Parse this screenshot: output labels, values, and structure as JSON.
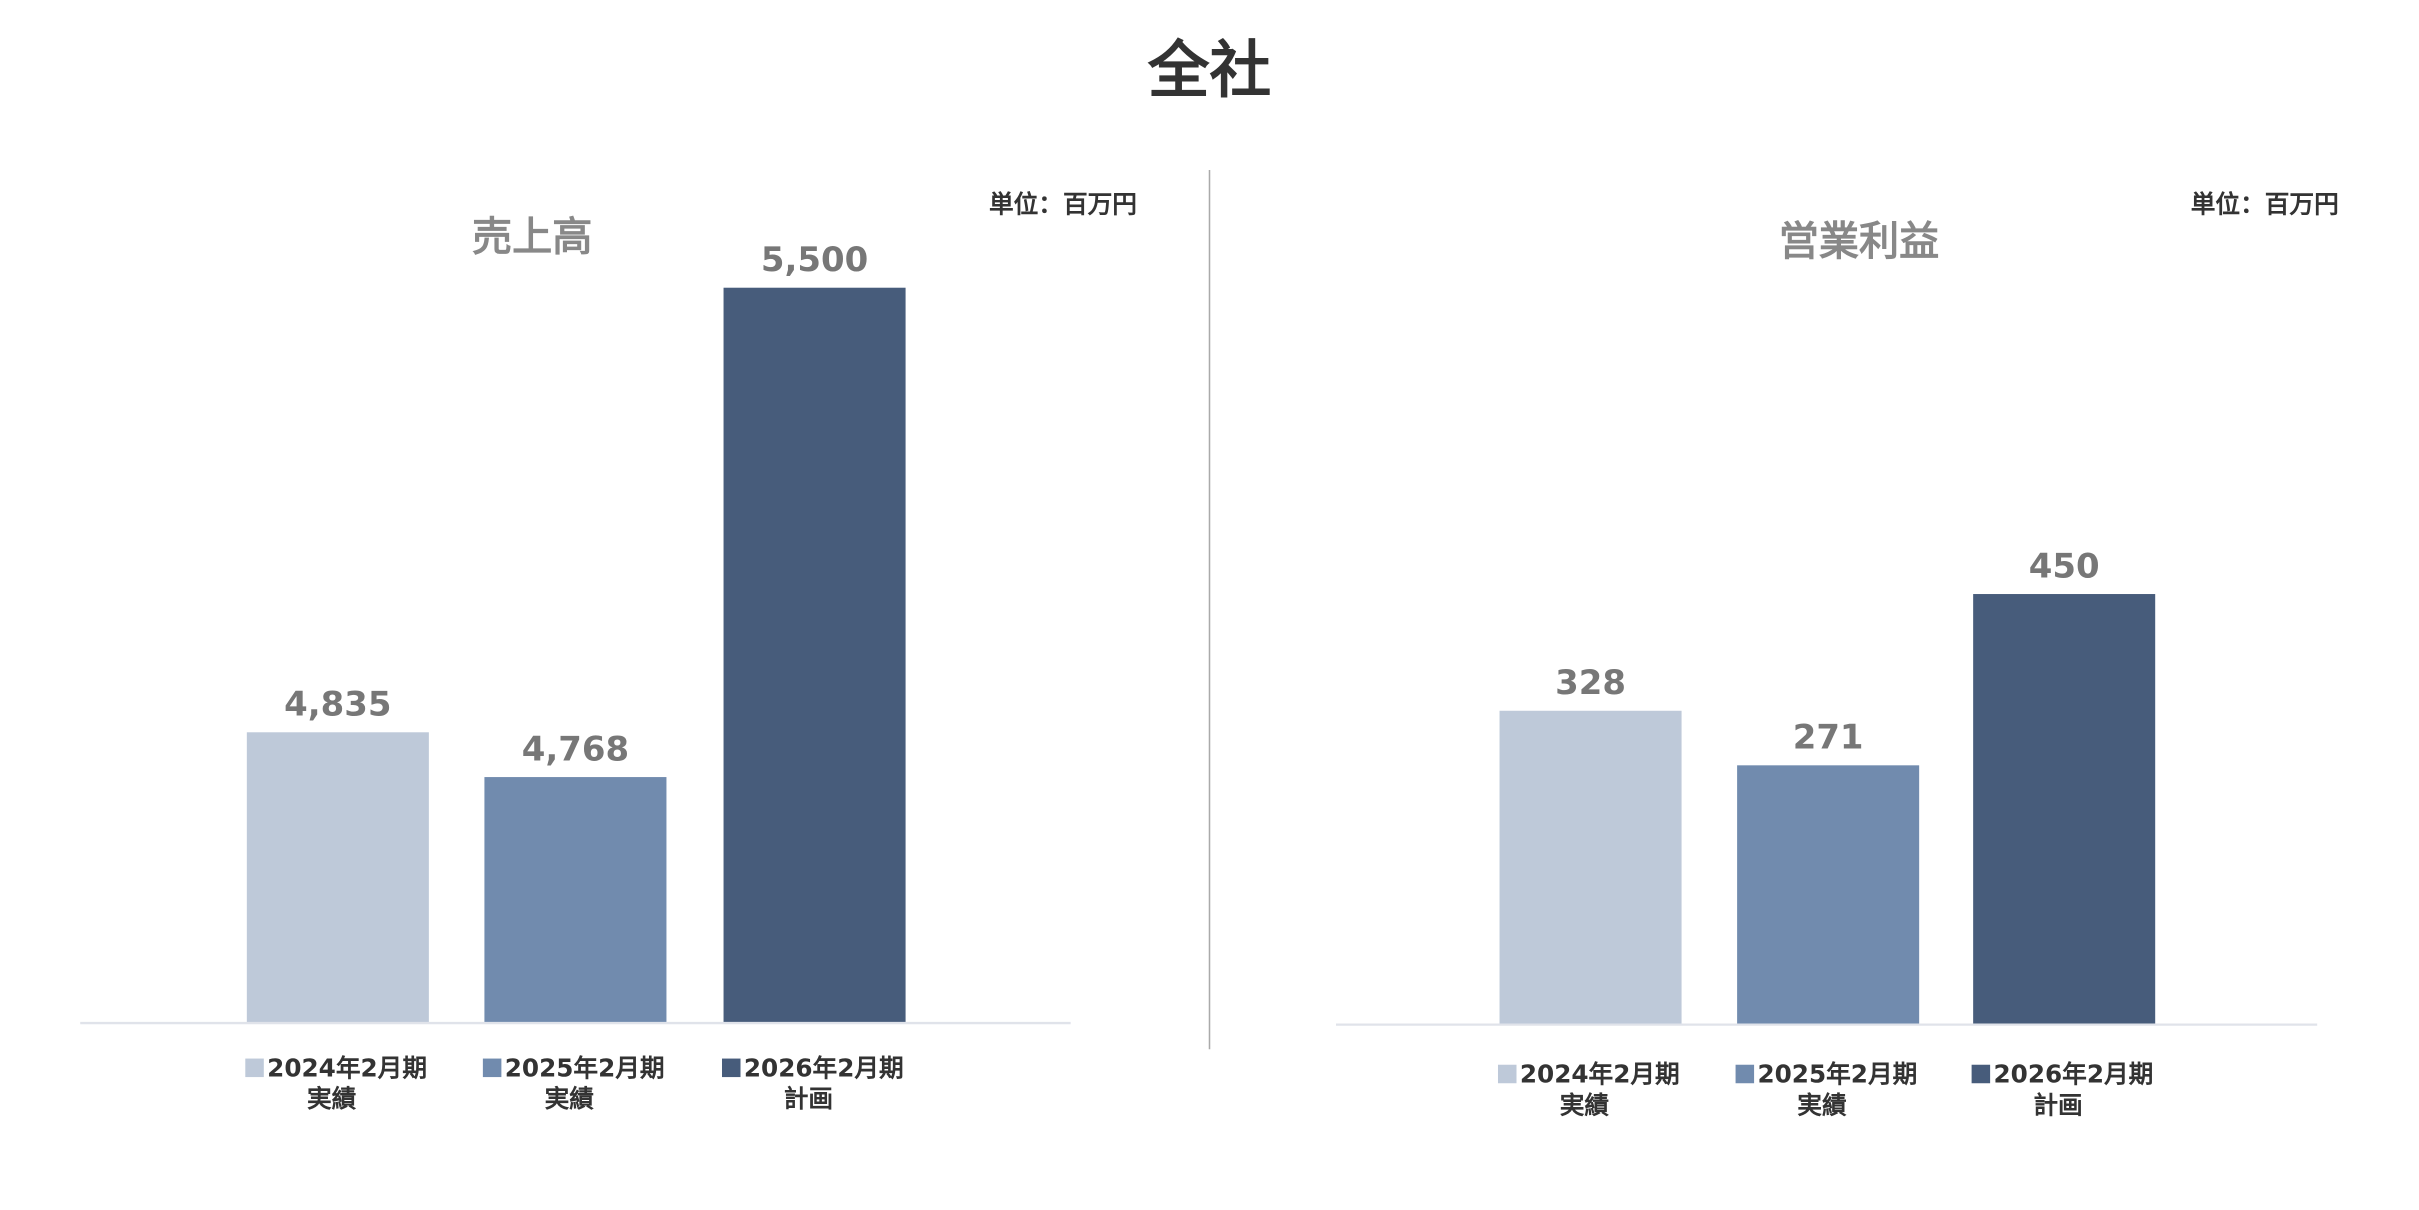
{
  "title": "全社",
  "chart_data": [
    {
      "type": "bar",
      "title": "売上高",
      "unit_label": "単位：百万円",
      "categories": [
        [
          "2024年2月期",
          "実績"
        ],
        [
          "2025年2月期",
          "実績"
        ],
        [
          "2026年2月期",
          "計画"
        ]
      ],
      "values": [
        4835,
        4768,
        5500
      ],
      "value_labels": [
        "4,835",
        "4,768",
        "5,500"
      ],
      "colors": [
        "#bec9d9",
        "#718bae",
        "#475c7b"
      ],
      "ylim": [
        4400,
        5600
      ]
    },
    {
      "type": "bar",
      "title": "営業利益",
      "unit_label": "単位：百万円",
      "categories": [
        [
          "2024年2月期",
          "実績"
        ],
        [
          "2025年2月期",
          "実績"
        ],
        [
          "2026年2月期",
          "計画"
        ]
      ],
      "values": [
        328,
        271,
        450
      ],
      "colors": [
        "#bec9d9",
        "#718bae",
        "#475c7b"
      ],
      "ylim": [
        0,
        840
      ]
    }
  ]
}
